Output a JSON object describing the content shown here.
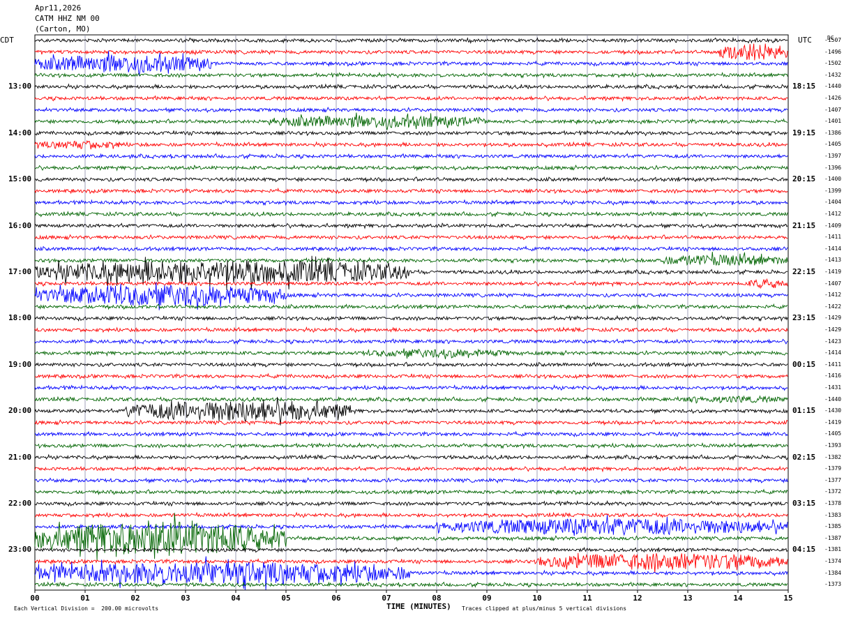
{
  "header": {
    "date": "Apr11,2026",
    "station": "CATM HHZ NM 00",
    "location": "(Carton, MO)"
  },
  "labels": {
    "left_tz": "CDT",
    "right_tz": "UTC",
    "dc": "DC"
  },
  "chart_data": {
    "type": "line",
    "title": "",
    "xlabel": "TIME (MINUTES)",
    "x_ticks": [
      "00",
      "01",
      "02",
      "03",
      "04",
      "05",
      "06",
      "07",
      "08",
      "09",
      "10",
      "11",
      "12",
      "13",
      "14",
      "15"
    ],
    "xlim": [
      0,
      15
    ],
    "trace_colors": [
      "#000000",
      "#ff0000",
      "#0000ff",
      "#006400"
    ],
    "left_hour_labels": [
      "13:00",
      "14:00",
      "15:00",
      "16:00",
      "17:00",
      "18:00",
      "19:00",
      "20:00",
      "21:00",
      "22:00",
      "23:00"
    ],
    "right_hour_labels": [
      "18:15",
      "19:15",
      "20:15",
      "21:15",
      "22:15",
      "23:15",
      "00:15",
      "01:15",
      "02:15",
      "03:15",
      "04:15"
    ],
    "dc_offsets": [
      "-1507",
      "-1496",
      "-1502",
      "-1432",
      "-1440",
      "-1426",
      "-1407",
      "-1401",
      "-1386",
      "-1405",
      "-1397",
      "-1396",
      "-1400",
      "-1399",
      "-1404",
      "-1412",
      "-1409",
      "-1411",
      "-1414",
      "-1413",
      "-1419",
      "-1407",
      "-1412",
      "-1422",
      "-1429",
      "-1429",
      "-1423",
      "-1414",
      "-1411",
      "-1416",
      "-1431",
      "-1440",
      "-1430",
      "-1419",
      "-1405",
      "-1393",
      "-1382",
      "-1379",
      "-1377",
      "-1372",
      "-1378",
      "-1383",
      "-1385",
      "-1387",
      "-1381",
      "-1374",
      "-1384",
      "-1373"
    ],
    "grid": true
  },
  "footer": {
    "scale": "Each Vertical Division =  200.00 microvolts",
    "clip": "Traces clipped at plus/minus 5 vertical divisions"
  }
}
